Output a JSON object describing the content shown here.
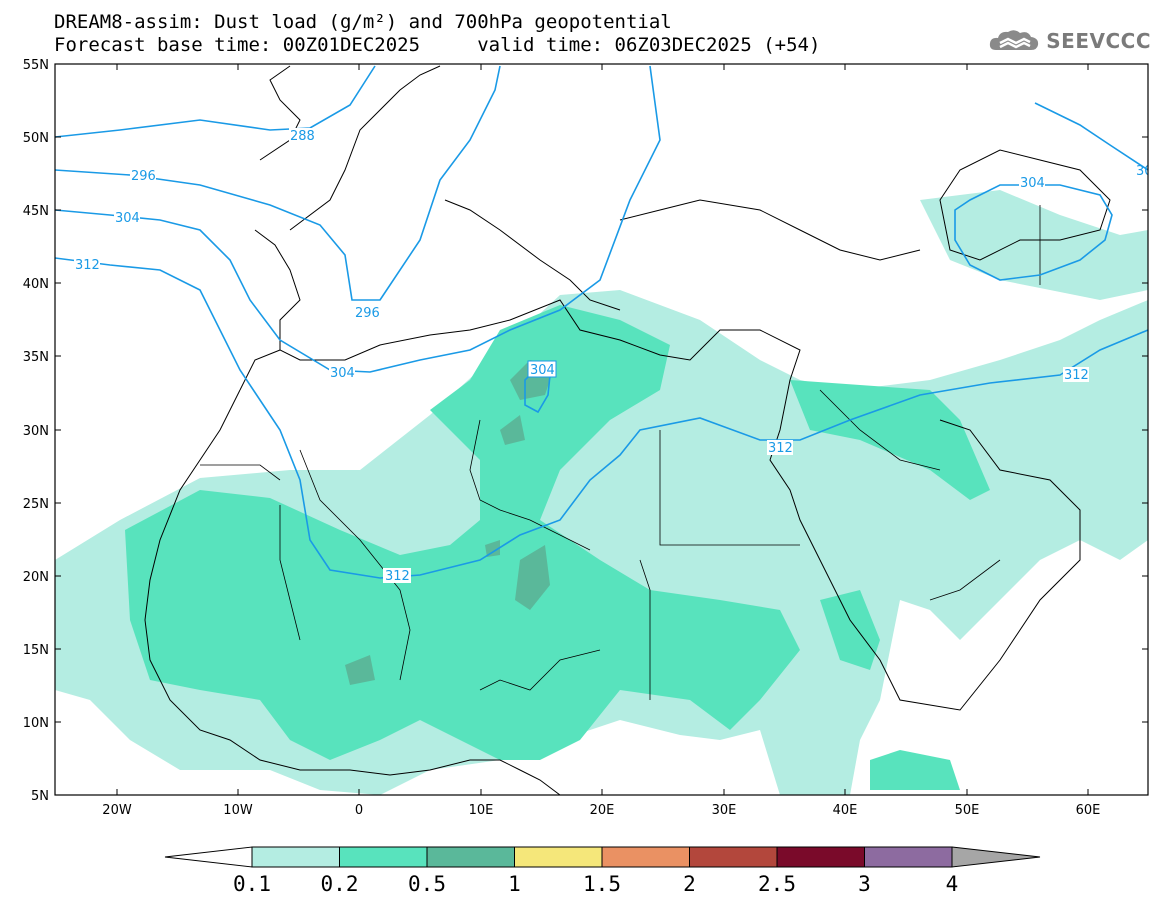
{
  "header": {
    "title_line1": "DREAM8-assim: Dust load (g/m²) and 700hPa geopotential",
    "title_line2": "Forecast base time: 00Z01DEC2025     valid time: 06Z03DEC2025 (+54)",
    "logo_text": "SEEVCCC"
  },
  "map": {
    "lat_labels": [
      "55N",
      "50N",
      "45N",
      "40N",
      "35N",
      "30N",
      "25N",
      "20N",
      "15N",
      "10N",
      "5N"
    ],
    "lon_labels": [
      "20W",
      "10W",
      "0",
      "10E",
      "20E",
      "30E",
      "40E",
      "50E",
      "60E"
    ],
    "contour_color": "#1a9ae6",
    "contour_labels": [
      "288",
      "296",
      "304",
      "312",
      "296",
      "304",
      "304",
      "312",
      "312",
      "312",
      "304",
      "30"
    ]
  },
  "colorbar": {
    "labels": [
      "0.1",
      "0.2",
      "0.5",
      "1",
      "1.5",
      "2",
      "2.5",
      "3",
      "4"
    ],
    "colors": [
      "#ffffff",
      "#b4ede2",
      "#58e3bd",
      "#5ab89a",
      "#f5e77a",
      "#ea9163",
      "#b3473c",
      "#7a0a2a",
      "#8d6ba0",
      "#a6a6a6"
    ]
  }
}
